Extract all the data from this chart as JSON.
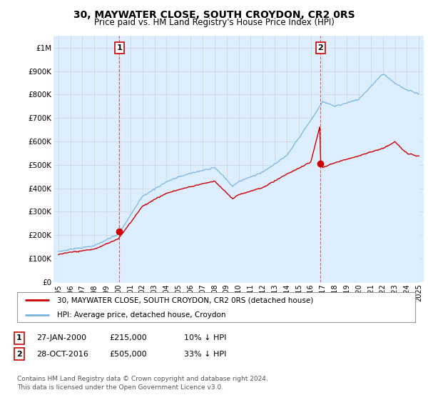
{
  "title": "30, MAYWATER CLOSE, SOUTH CROYDON, CR2 0RS",
  "subtitle": "Price paid vs. HM Land Registry's House Price Index (HPI)",
  "ylim": [
    0,
    1050000
  ],
  "yticks": [
    0,
    100000,
    200000,
    300000,
    400000,
    500000,
    600000,
    700000,
    800000,
    900000,
    1000000
  ],
  "ytick_labels": [
    "£0",
    "£100K",
    "£200K",
    "£300K",
    "£400K",
    "£500K",
    "£600K",
    "£700K",
    "£800K",
    "£900K",
    "£1M"
  ],
  "hpi_color": "#7ab5e0",
  "hpi_fill_color": "#ddeeff",
  "price_color": "#cc0000",
  "transaction1_x": 2000.07,
  "transaction1_y": 215000,
  "transaction2_x": 2016.82,
  "transaction2_y": 505000,
  "legend_price_label": "30, MAYWATER CLOSE, SOUTH CROYDON, CR2 0RS (detached house)",
  "legend_hpi_label": "HPI: Average price, detached house, Croydon",
  "footer1": "Contains HM Land Registry data © Crown copyright and database right 2024.",
  "footer2": "This data is licensed under the Open Government Licence v3.0.",
  "info1_label": "1",
  "info1_date": "27-JAN-2000",
  "info1_price": "£215,000",
  "info1_hpi": "10% ↓ HPI",
  "info2_label": "2",
  "info2_date": "28-OCT-2016",
  "info2_price": "£505,000",
  "info2_hpi": "33% ↓ HPI",
  "background_color": "#ffffff",
  "grid_color": "#cccccc",
  "xlim_left": 1994.6,
  "xlim_right": 2025.4
}
